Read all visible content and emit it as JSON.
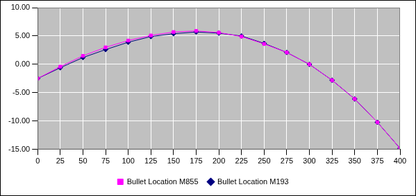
{
  "chart_data": {
    "type": "line",
    "x": [
      0,
      25,
      50,
      75,
      100,
      125,
      150,
      175,
      200,
      225,
      250,
      275,
      300,
      325,
      350,
      375,
      400
    ],
    "xlim": [
      0,
      400
    ],
    "xticks": [
      0,
      25,
      50,
      75,
      100,
      125,
      150,
      175,
      200,
      225,
      250,
      275,
      300,
      325,
      350,
      375,
      400
    ],
    "ylim": [
      -15,
      10
    ],
    "yticks": [
      {
        "value": -15,
        "label": "-15.00"
      },
      {
        "value": -10,
        "label": "-10.00"
      },
      {
        "value": -5,
        "label": "-5.00"
      },
      {
        "value": 0,
        "label": "0.00"
      },
      {
        "value": 5,
        "label": "5.00"
      },
      {
        "value": 10,
        "label": "10.00"
      }
    ],
    "grid": true,
    "legend": "bottom",
    "series": [
      {
        "name": "Bullet Location M855",
        "color": "#ff00ff",
        "marker": "square",
        "values": [
          -2.5,
          -0.4,
          1.5,
          3.0,
          4.2,
          5.1,
          5.7,
          5.9,
          5.6,
          4.9,
          3.6,
          2.1,
          0.0,
          -2.8,
          -6.1,
          -10.2,
          -14.8
        ]
      },
      {
        "name": "Bullet Location M193",
        "color": "#000080",
        "marker": "diamond",
        "values": [
          -2.5,
          -0.6,
          1.2,
          2.6,
          3.9,
          4.9,
          5.4,
          5.7,
          5.5,
          5.0,
          3.7,
          2.1,
          0.0,
          -2.8,
          -6.1,
          -10.2,
          -14.8
        ]
      }
    ]
  }
}
